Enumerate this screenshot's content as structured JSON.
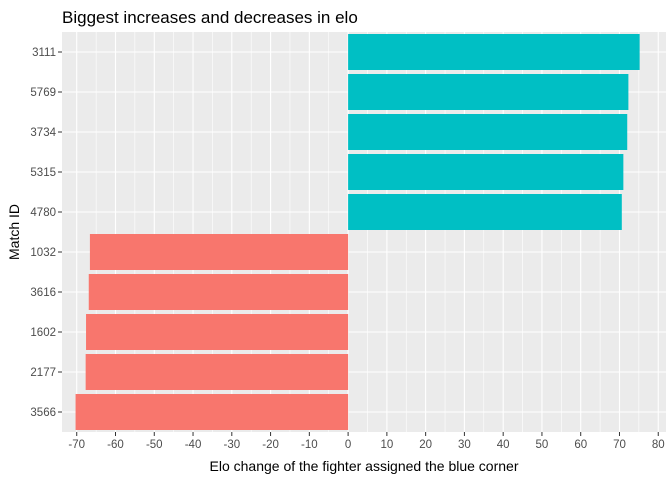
{
  "chart_data": {
    "type": "bar",
    "orientation": "horizontal",
    "title": "Biggest increases and decreases in elo",
    "xlabel": "Elo change of the fighter assigned the blue corner",
    "ylabel": "Match ID",
    "categories": [
      "3111",
      "5769",
      "3734",
      "5315",
      "4780",
      "1032",
      "3616",
      "1602",
      "2177",
      "3566"
    ],
    "values": [
      75.2,
      72.3,
      72.0,
      71.0,
      70.6,
      -66.6,
      -66.9,
      -67.6,
      -67.7,
      -70.3
    ],
    "xlim": [
      -73.8,
      82.0
    ],
    "xticks": [
      -70,
      -60,
      -50,
      -40,
      -30,
      -20,
      -10,
      0,
      10,
      20,
      30,
      40,
      50,
      60,
      70,
      80
    ],
    "positive_color": "#00BFC4",
    "negative_color": "#F8766D",
    "panel_background": "#EBEBEB",
    "grid": true,
    "legend": "none"
  }
}
